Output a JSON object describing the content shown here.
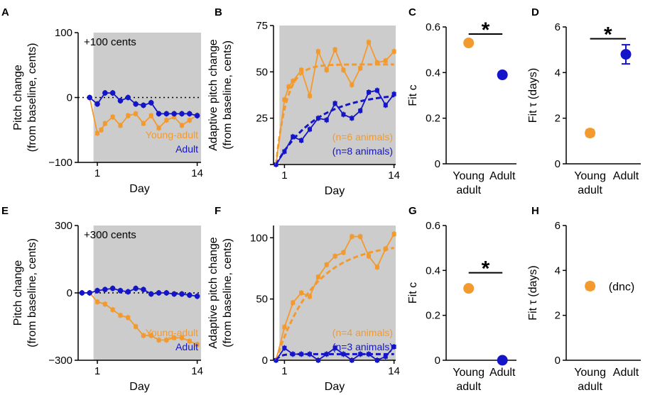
{
  "colors": {
    "young": "#f39a2e",
    "adult": "#1414c8",
    "shade": "#cccccc",
    "axis": "#000000"
  },
  "chart_data": [
    {
      "id": "A",
      "type": "line",
      "letter": "A",
      "ylabel": [
        "Pitch change",
        "(from baseline, cents)"
      ],
      "xlabel": "Day",
      "ylim": [
        -100,
        100
      ],
      "xlim": [
        -1.5,
        14.5
      ],
      "yticks": [
        {
          "v": 100,
          "label": "100"
        },
        {
          "v": 0,
          "label": "0"
        },
        {
          "v": -100,
          "label": "−100"
        }
      ],
      "xticks": [
        {
          "v": 1,
          "label": "1"
        },
        {
          "v": 14,
          "label": "14"
        }
      ],
      "shade_start": 0.5,
      "zero_line": true,
      "annotation": "+100 cents",
      "legend": [
        {
          "text": "Young-adult",
          "series": "young"
        },
        {
          "text": "Adult",
          "series": "adult"
        }
      ],
      "series": [
        {
          "name": "Young-adult",
          "color": "young",
          "marker": "square",
          "x": [
            0,
            1,
            1.5,
            2,
            3,
            4,
            5,
            6,
            7,
            8,
            9,
            10,
            11,
            12,
            13,
            14
          ],
          "y": [
            0,
            -55,
            -50,
            -40,
            -30,
            -43,
            -28,
            -25,
            -40,
            -28,
            -47,
            -35,
            -30,
            -43,
            -35,
            -27
          ]
        },
        {
          "name": "Adult",
          "color": "adult",
          "marker": "circle",
          "x": [
            0,
            1,
            2,
            3,
            4,
            5,
            6,
            7,
            8,
            9,
            10,
            11,
            12,
            13,
            14
          ],
          "y": [
            0,
            -10,
            7,
            7,
            -5,
            0,
            -10,
            -12,
            -8,
            -25,
            -25,
            -25,
            -25,
            -25,
            -28
          ]
        }
      ]
    },
    {
      "id": "B",
      "type": "line",
      "letter": "B",
      "ylabel": [
        "Adaptive pitch change",
        "(from baseline, cents)"
      ],
      "xlabel": "Day",
      "ylim": [
        0,
        75
      ],
      "xlim": [
        -0.3,
        14.2
      ],
      "yticks": [
        {
          "v": 0,
          "label": ""
        },
        {
          "v": 25,
          "label": "25"
        },
        {
          "v": 50,
          "label": "50"
        },
        {
          "v": 75,
          "label": "75"
        }
      ],
      "xticks": [
        {
          "v": 1,
          "label": "1"
        },
        {
          "v": 14,
          "label": "14"
        }
      ],
      "shade_start": 0.4,
      "zero_line": false,
      "legend": [
        {
          "text": "(n=6 animals)",
          "series": "young"
        },
        {
          "text": "(n=8 animals)",
          "series": "adult"
        }
      ],
      "series": [
        {
          "name": "Young-adult",
          "color": "young",
          "marker": "square",
          "x": [
            0,
            1,
            1.5,
            2,
            3,
            4,
            5,
            6,
            7,
            8,
            9,
            10,
            11,
            12,
            13,
            14
          ],
          "y": [
            0,
            35,
            42,
            45,
            51,
            37,
            61,
            51,
            62,
            51,
            43,
            52,
            66,
            55,
            56,
            61
          ]
        },
        {
          "name": "Adult",
          "color": "adult",
          "marker": "square",
          "x": [
            0,
            1,
            2,
            3,
            4,
            5,
            6,
            7,
            8,
            9,
            10,
            11,
            12,
            13,
            14
          ],
          "y": [
            0,
            7,
            15,
            13,
            19,
            25,
            24,
            33,
            27,
            25,
            29,
            39,
            40,
            32,
            38
          ]
        },
        {
          "name": "Young-adult fit",
          "color": "young",
          "dashed": true,
          "fit": {
            "c": 54,
            "tau": 1.25
          }
        },
        {
          "name": "Adult fit",
          "color": "adult",
          "dashed": true,
          "fit": {
            "c": 39,
            "tau": 4.8
          }
        }
      ]
    },
    {
      "id": "C",
      "type": "scatter",
      "letter": "C",
      "ylabel": [
        "Fit c"
      ],
      "ylim": [
        0,
        0.6
      ],
      "yticks": [
        {
          "v": 0,
          "label": "0"
        },
        {
          "v": 0.2,
          "label": "0.2"
        },
        {
          "v": 0.4,
          "label": "0.4"
        },
        {
          "v": 0.6,
          "label": "0.6"
        }
      ],
      "categories": [
        {
          "label": [
            "Young",
            "adult"
          ],
          "color": "young"
        },
        {
          "label": [
            "Adult"
          ],
          "color": "adult"
        }
      ],
      "values": [
        0.53,
        0.39
      ],
      "errors": [
        0.012,
        0.012
      ],
      "significance": "*"
    },
    {
      "id": "D",
      "type": "scatter",
      "letter": "D",
      "ylabel": [
        "Fit τ (days)"
      ],
      "ylim": [
        0,
        6
      ],
      "yticks": [
        {
          "v": 0,
          "label": "0"
        },
        {
          "v": 2,
          "label": "2"
        },
        {
          "v": 4,
          "label": "4"
        },
        {
          "v": 6,
          "label": "6"
        }
      ],
      "categories": [
        {
          "label": [
            "Young",
            "adult"
          ],
          "color": "young"
        },
        {
          "label": [
            "Adult"
          ],
          "color": "adult"
        }
      ],
      "values": [
        1.35,
        4.8
      ],
      "errors": [
        0.15,
        0.42
      ],
      "significance": "*"
    },
    {
      "id": "E",
      "type": "line",
      "letter": "E",
      "ylabel": [
        "Pitch change",
        "(from baseline, cents)"
      ],
      "xlabel": "Day",
      "ylim": [
        -300,
        300
      ],
      "xlim": [
        -1.5,
        14.5
      ],
      "yticks": [
        {
          "v": 300,
          "label": "300"
        },
        {
          "v": 0,
          "label": "0"
        },
        {
          "v": -300,
          "label": "−300"
        }
      ],
      "xticks": [
        {
          "v": 1,
          "label": "1"
        },
        {
          "v": 14,
          "label": "14"
        }
      ],
      "shade_start": 0.5,
      "zero_line": true,
      "annotation": "+300 cents",
      "legend": [
        {
          "text": "Young-adult",
          "series": "young"
        },
        {
          "text": "Adult",
          "series": "adult"
        }
      ],
      "series": [
        {
          "name": "Young-adult",
          "color": "young",
          "marker": "square",
          "x": [
            0,
            1,
            2,
            3,
            4,
            5,
            6,
            7,
            8,
            9,
            10,
            11,
            12,
            13,
            14
          ],
          "y": [
            0,
            -40,
            -50,
            -75,
            -100,
            -110,
            -150,
            -190,
            -190,
            -210,
            -210,
            -200,
            -200,
            -215,
            -230
          ]
        },
        {
          "name": "Adult",
          "color": "adult",
          "marker": "circle",
          "x": [
            -1,
            0,
            1,
            2,
            3,
            4,
            5,
            6,
            7,
            8,
            9,
            10,
            11,
            12,
            13,
            14
          ],
          "y": [
            0,
            0,
            10,
            15,
            20,
            10,
            5,
            20,
            15,
            -5,
            0,
            0,
            -5,
            -5,
            -10,
            -15
          ]
        }
      ]
    },
    {
      "id": "F",
      "type": "line",
      "letter": "F",
      "ylabel": [
        "Adaptive pitch change",
        "(from baseline, cents)"
      ],
      "xlabel": "Day",
      "ylim": [
        0,
        110
      ],
      "xlim": [
        -0.3,
        14.2
      ],
      "yticks": [
        {
          "v": 0,
          "label": "0"
        },
        {
          "v": 50,
          "label": "50"
        },
        {
          "v": 100,
          "label": "100"
        }
      ],
      "xticks": [
        {
          "v": 1,
          "label": "1"
        },
        {
          "v": 14,
          "label": "14"
        }
      ],
      "shade_start": 0.4,
      "zero_line": false,
      "legend": [
        {
          "text": "(n=4 animals)",
          "series": "young"
        },
        {
          "text": "(n=3 animals)",
          "series": "adult"
        }
      ],
      "series": [
        {
          "name": "Young-adult",
          "color": "young",
          "marker": "square",
          "x": [
            0,
            1,
            2,
            3,
            4,
            5,
            6,
            7,
            8,
            9,
            10,
            11,
            12,
            13,
            14
          ],
          "y": [
            0,
            27,
            47,
            55,
            52,
            68,
            78,
            85,
            88,
            101,
            101,
            85,
            76,
            91,
            103
          ]
        },
        {
          "name": "Adult",
          "color": "adult",
          "marker": "square",
          "x": [
            0,
            1,
            2,
            3,
            4,
            5,
            6,
            7,
            8,
            9,
            10,
            11,
            12,
            13,
            14
          ],
          "y": [
            0,
            10,
            5,
            5,
            5,
            0,
            5,
            10,
            5,
            0,
            5,
            5,
            0,
            3,
            11
          ]
        },
        {
          "name": "Young-adult fit",
          "color": "young",
          "dashed": true,
          "fit": {
            "c": 96,
            "tau": 4.5
          }
        },
        {
          "name": "Adult fit",
          "color": "adult",
          "dashed": true,
          "fit": {
            "c": 5,
            "tau": 0.5
          }
        }
      ]
    },
    {
      "id": "G",
      "type": "scatter",
      "letter": "G",
      "ylabel": [
        "Fit c"
      ],
      "ylim": [
        0,
        0.6
      ],
      "yticks": [
        {
          "v": 0,
          "label": "0"
        },
        {
          "v": 0.2,
          "label": "0.2"
        },
        {
          "v": 0.4,
          "label": "0.4"
        },
        {
          "v": 0.6,
          "label": "0.6"
        }
      ],
      "categories": [
        {
          "label": [
            "Young",
            "adult"
          ],
          "color": "young"
        },
        {
          "label": [
            "Adult"
          ],
          "color": "adult"
        }
      ],
      "values": [
        0.32,
        0.0
      ],
      "errors": [
        0.01,
        0.01
      ],
      "significance": "*"
    },
    {
      "id": "H",
      "type": "scatter",
      "letter": "H",
      "ylabel": [
        "Fit τ (days)"
      ],
      "ylim": [
        0,
        6
      ],
      "yticks": [
        {
          "v": 0,
          "label": "0"
        },
        {
          "v": 2,
          "label": "2"
        },
        {
          "v": 4,
          "label": "4"
        },
        {
          "v": 6,
          "label": "6"
        }
      ],
      "categories": [
        {
          "label": [
            "Young",
            "adult"
          ],
          "color": "young"
        },
        {
          "label": [
            "Adult"
          ],
          "color": "adult"
        }
      ],
      "values": [
        3.3,
        null
      ],
      "errors": [
        0.15,
        null
      ],
      "note": "(dnc)"
    }
  ]
}
